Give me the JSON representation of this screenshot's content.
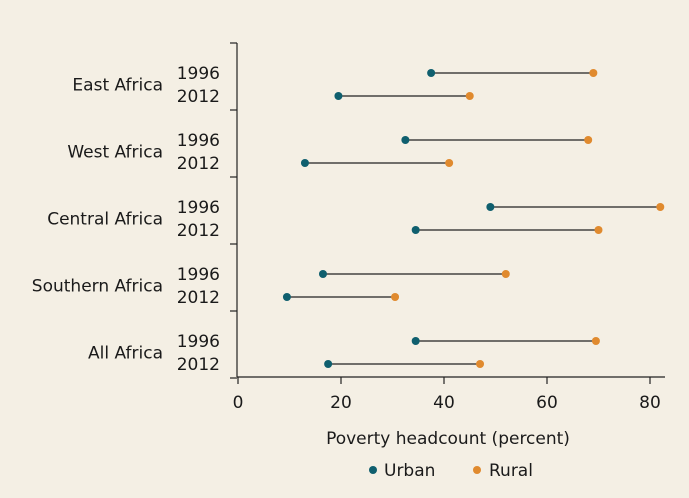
{
  "chart_data": {
    "type": "dumbbell",
    "xlabel": "Poverty headcount (percent)",
    "xlim": [
      0,
      85
    ],
    "xticks": [
      0,
      20,
      40,
      60,
      80
    ],
    "grid": false,
    "legend_placement": "bottom-center",
    "series": [
      {
        "name": "Urban",
        "color": "#0f5f6e"
      },
      {
        "name": "Rural",
        "color": "#e08a2e"
      }
    ],
    "groups": [
      {
        "label": "East Africa",
        "rows": [
          {
            "year": "1996",
            "urban": 37.5,
            "rural": 69
          },
          {
            "year": "2012",
            "urban": 19.5,
            "rural": 45
          }
        ]
      },
      {
        "label": "West Africa",
        "rows": [
          {
            "year": "1996",
            "urban": 32.5,
            "rural": 68
          },
          {
            "year": "2012",
            "urban": 13,
            "rural": 41
          }
        ]
      },
      {
        "label": "Central Africa",
        "rows": [
          {
            "year": "1996",
            "urban": 49,
            "rural": 82
          },
          {
            "year": "2012",
            "urban": 34.5,
            "rural": 70
          }
        ]
      },
      {
        "label": "Southern Africa",
        "rows": [
          {
            "year": "1996",
            "urban": 16.5,
            "rural": 52
          },
          {
            "year": "2012",
            "urban": 9.5,
            "rural": 30.5
          }
        ]
      },
      {
        "label": "All Africa",
        "rows": [
          {
            "year": "1996",
            "urban": 34.5,
            "rural": 69.5
          },
          {
            "year": "2012",
            "urban": 17.5,
            "rural": 47
          }
        ]
      }
    ]
  }
}
